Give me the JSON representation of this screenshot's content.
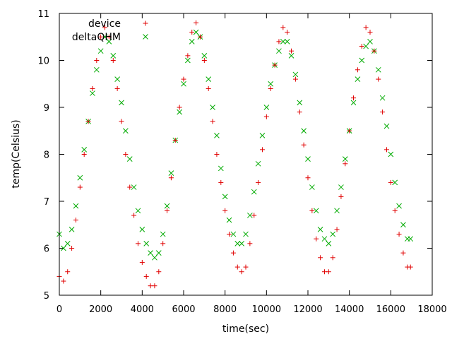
{
  "chart_data": {
    "type": "scatter",
    "title": "",
    "xlabel": "time(sec)",
    "ylabel": "temp(Celsius)",
    "xlim": [
      0,
      18000
    ],
    "ylim": [
      5,
      11
    ],
    "xticks": [
      0,
      2000,
      4000,
      6000,
      8000,
      10000,
      12000,
      14000,
      16000,
      18000
    ],
    "yticks": [
      5,
      6,
      7,
      8,
      9,
      10,
      11
    ],
    "grid": false,
    "legend_position": "top-left",
    "series": [
      {
        "name": "device",
        "marker": "plus",
        "color": "#e00000",
        "x": [
          0,
          200,
          400,
          600,
          800,
          1000,
          1200,
          1400,
          1600,
          1800,
          2000,
          2200,
          2400,
          2600,
          2800,
          3000,
          3200,
          3400,
          3600,
          3800,
          4000,
          4200,
          4400,
          4600,
          4800,
          5000,
          5200,
          5400,
          5600,
          5800,
          6000,
          6200,
          6400,
          6600,
          6800,
          7000,
          7200,
          7400,
          7600,
          7800,
          8000,
          8200,
          8400,
          8600,
          8800,
          9000,
          9200,
          9400,
          9600,
          9800,
          10000,
          10200,
          10400,
          10600,
          10800,
          11000,
          11200,
          11400,
          11600,
          11800,
          12000,
          12200,
          12400,
          12600,
          12800,
          13000,
          13200,
          13400,
          13600,
          13800,
          14000,
          14200,
          14400,
          14600,
          14800,
          15000,
          15200,
          15400,
          15600,
          15800,
          16000,
          16200,
          16400,
          16600,
          16800,
          16950
        ],
        "y": [
          5.4,
          5.3,
          5.5,
          6.0,
          6.6,
          7.3,
          8.0,
          8.7,
          9.4,
          10.0,
          10.5,
          10.7,
          10.5,
          10.0,
          9.4,
          8.7,
          8.0,
          7.3,
          6.7,
          6.1,
          5.7,
          5.4,
          5.2,
          5.2,
          5.5,
          6.1,
          6.8,
          7.5,
          8.3,
          9.0,
          9.6,
          10.1,
          10.6,
          10.8,
          10.5,
          10.0,
          9.4,
          8.7,
          8.0,
          7.4,
          6.8,
          6.3,
          5.9,
          5.6,
          5.5,
          5.6,
          6.1,
          6.7,
          7.4,
          8.1,
          8.8,
          9.4,
          9.9,
          10.4,
          10.7,
          10.6,
          10.2,
          9.6,
          8.9,
          8.2,
          7.5,
          6.8,
          6.2,
          5.8,
          5.5,
          5.5,
          5.8,
          6.4,
          7.1,
          7.8,
          8.5,
          9.2,
          9.8,
          10.3,
          10.7,
          10.6,
          10.2,
          9.6,
          8.9,
          8.1,
          7.4,
          6.8,
          6.3,
          5.9,
          5.6,
          5.6
        ]
      },
      {
        "name": "deltaQHM",
        "marker": "cross",
        "color": "#00aa00",
        "x": [
          0,
          200,
          400,
          600,
          800,
          1000,
          1200,
          1400,
          1600,
          1800,
          2000,
          2200,
          2400,
          2600,
          2800,
          3000,
          3200,
          3400,
          3600,
          3800,
          4000,
          4200,
          4400,
          4600,
          4800,
          5000,
          5200,
          5400,
          5600,
          5800,
          6000,
          6200,
          6400,
          6600,
          6800,
          7000,
          7200,
          7400,
          7600,
          7800,
          8000,
          8200,
          8400,
          8600,
          8800,
          9000,
          9200,
          9400,
          9600,
          9800,
          10000,
          10200,
          10400,
          10600,
          10800,
          11000,
          11200,
          11400,
          11600,
          11800,
          12000,
          12200,
          12400,
          12600,
          12800,
          13000,
          13200,
          13400,
          13600,
          13800,
          14000,
          14200,
          14400,
          14600,
          14800,
          15000,
          15200,
          15400,
          15600,
          15800,
          16000,
          16200,
          16400,
          16600,
          16800,
          16950
        ],
        "y": [
          6.3,
          6.0,
          6.1,
          6.4,
          6.9,
          7.5,
          8.1,
          8.7,
          9.3,
          9.8,
          10.2,
          10.5,
          10.4,
          10.1,
          9.6,
          9.1,
          8.5,
          7.9,
          7.3,
          6.8,
          6.4,
          6.1,
          5.9,
          5.8,
          5.9,
          6.3,
          6.9,
          7.6,
          8.3,
          8.9,
          9.5,
          10.0,
          10.4,
          10.6,
          10.5,
          10.1,
          9.6,
          9.0,
          8.4,
          7.7,
          7.1,
          6.6,
          6.3,
          6.1,
          6.1,
          6.3,
          6.7,
          7.2,
          7.8,
          8.4,
          9.0,
          9.5,
          9.9,
          10.2,
          10.4,
          10.4,
          10.1,
          9.7,
          9.1,
          8.5,
          7.9,
          7.3,
          6.8,
          6.4,
          6.2,
          6.1,
          6.3,
          6.8,
          7.3,
          7.9,
          8.5,
          9.1,
          9.6,
          10.0,
          10.3,
          10.4,
          10.2,
          9.8,
          9.2,
          8.6,
          8.0,
          7.4,
          6.9,
          6.5,
          6.2,
          6.2
        ]
      }
    ]
  }
}
